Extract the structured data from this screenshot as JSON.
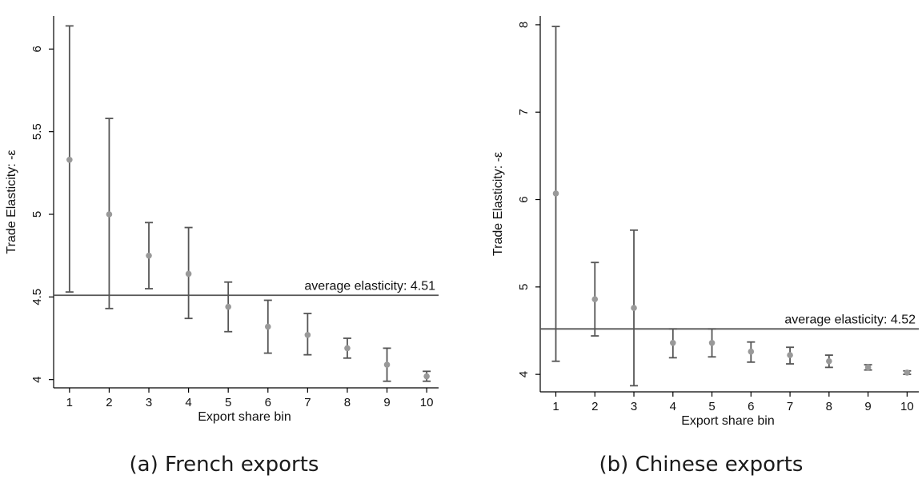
{
  "panels": [
    {
      "caption": "(a) French exports",
      "chart_data": {
        "type": "scatter",
        "title": "",
        "xlabel": "Export share bin",
        "ylabel": "Trade Elasticity: -ε",
        "x": [
          1,
          2,
          3,
          4,
          5,
          6,
          7,
          8,
          9,
          10
        ],
        "x_ticks": [
          "1",
          "2",
          "3",
          "4",
          "5",
          "6",
          "7",
          "8",
          "9",
          "10"
        ],
        "ylim": [
          3.95,
          6.2
        ],
        "y_ticks": [
          4,
          4.5,
          5,
          5.5,
          6
        ],
        "y_tick_labels": [
          "4",
          "4.5",
          "5",
          "5.5",
          "6"
        ],
        "series": [
          {
            "point": [
              5.33,
              5.0,
              4.75,
              4.64,
              4.44,
              4.32,
              4.27,
              4.19,
              4.09,
              4.02
            ],
            "upper": [
              6.14,
              5.58,
              4.95,
              4.92,
              4.59,
              4.48,
              4.4,
              4.25,
              4.19,
              4.05
            ],
            "lower": [
              4.53,
              4.43,
              4.55,
              4.37,
              4.29,
              4.16,
              4.15,
              4.13,
              3.99,
              3.99
            ]
          }
        ],
        "reference_line": {
          "value": 4.51,
          "label": "average elasticity: 4.51"
        },
        "colors": {
          "point": "#999999",
          "errorbar": "#555555",
          "refline": "#555555",
          "axis": "#000000"
        },
        "grid": false
      }
    },
    {
      "caption": "(b) Chinese exports",
      "chart_data": {
        "type": "scatter",
        "title": "",
        "xlabel": "Export share bin",
        "ylabel": "Trade Elasticity: -ε",
        "x": [
          1,
          2,
          3,
          4,
          5,
          6,
          7,
          8,
          9,
          10
        ],
        "x_ticks": [
          "1",
          "2",
          "3",
          "4",
          "5",
          "6",
          "7",
          "8",
          "9",
          "10"
        ],
        "ylim": [
          3.8,
          8.1
        ],
        "y_ticks": [
          4,
          5,
          6,
          7,
          8
        ],
        "y_tick_labels": [
          "4",
          "5",
          "6",
          "7",
          "8"
        ],
        "series": [
          {
            "point": [
              6.07,
              4.86,
              4.76,
              4.36,
              4.36,
              4.26,
              4.22,
              4.15,
              4.08,
              4.02
            ],
            "upper": [
              7.98,
              5.28,
              5.65,
              4.52,
              4.52,
              4.37,
              4.31,
              4.22,
              4.11,
              4.04
            ],
            "lower": [
              4.15,
              4.44,
              3.87,
              4.19,
              4.2,
              4.14,
              4.12,
              4.08,
              4.05,
              4.0
            ]
          }
        ],
        "reference_line": {
          "value": 4.52,
          "label": "average elasticity: 4.52"
        },
        "colors": {
          "point": "#999999",
          "errorbar": "#555555",
          "refline": "#555555",
          "axis": "#000000"
        },
        "grid": false
      }
    }
  ]
}
